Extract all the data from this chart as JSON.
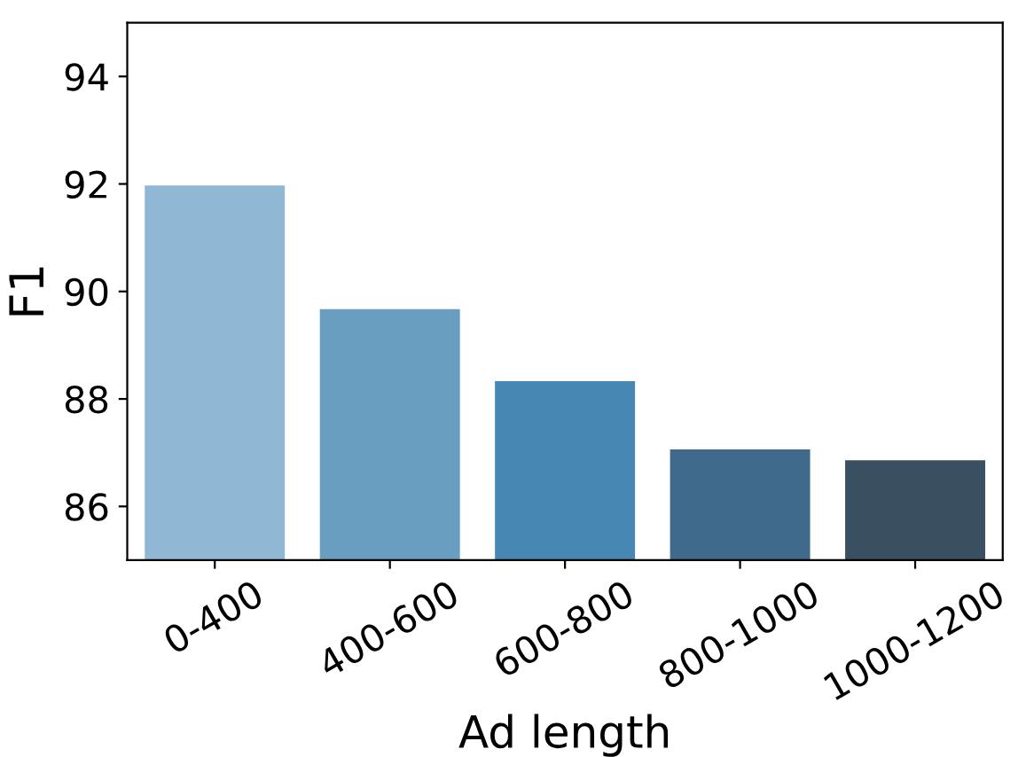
{
  "chart_data": {
    "type": "bar",
    "xlabel": "Ad length",
    "ylabel": "F1",
    "categories": [
      "0-400",
      "400-600",
      "600-800",
      "800-1000",
      "1000-1200"
    ],
    "values": [
      91.97,
      89.67,
      88.33,
      87.06,
      86.86
    ],
    "colors": [
      "#90b7d3",
      "#6a9ec1",
      "#4787b4",
      "#3f6a8b",
      "#3a4f60"
    ],
    "ylim": [
      85,
      95
    ],
    "yticks": [
      86,
      88,
      90,
      92,
      94
    ],
    "grid": false
  }
}
